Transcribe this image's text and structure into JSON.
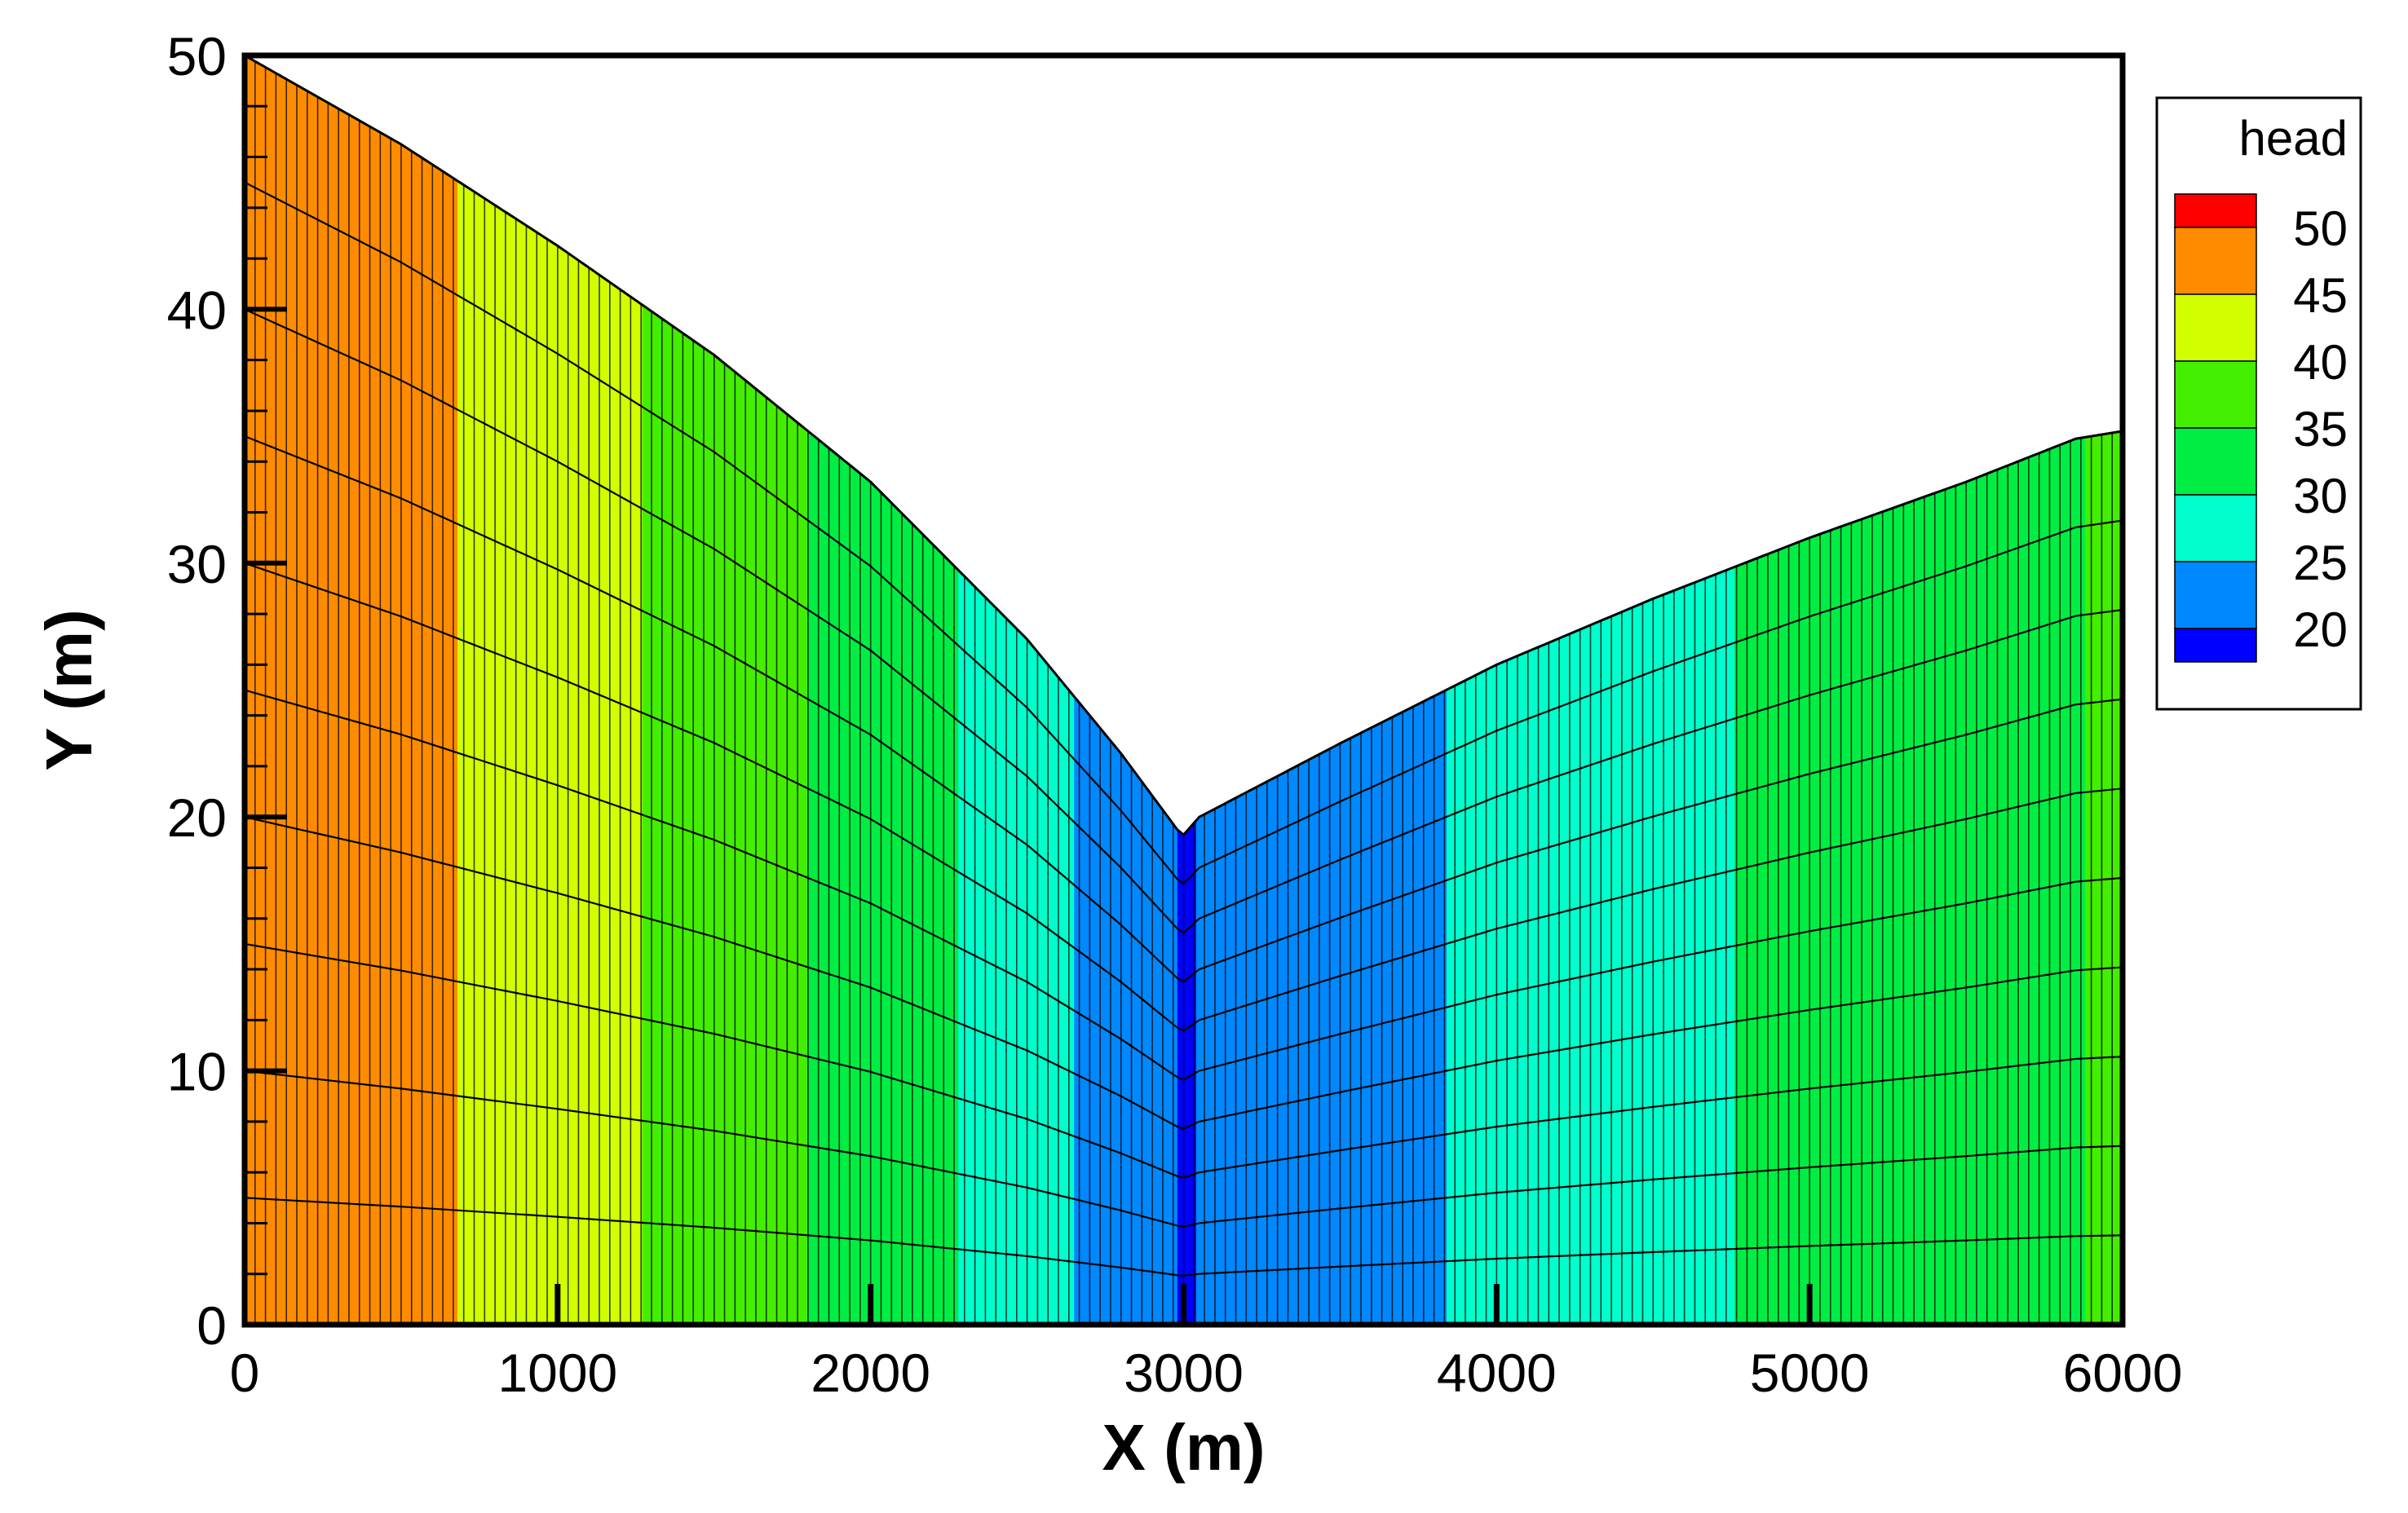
{
  "chart_data": {
    "type": "heatmap",
    "title": "",
    "xlabel": "X (m)",
    "ylabel": "Y (m)",
    "xlim": [
      0,
      6000
    ],
    "ylim": [
      0,
      50
    ],
    "x_ticks": [
      "0",
      "1000",
      "2000",
      "3000",
      "4000",
      "5000",
      "6000"
    ],
    "x_tick_values": [
      0,
      1000,
      2000,
      3000,
      4000,
      5000,
      6000
    ],
    "y_ticks": [
      "0",
      "10",
      "20",
      "30",
      "40",
      "50"
    ],
    "y_tick_values": [
      0,
      10,
      20,
      30,
      40,
      50
    ],
    "grid": false,
    "legend_placement": "right",
    "legend": {
      "title": "head",
      "levels": [
        {
          "label": "",
          "value": 55,
          "color": "#ff0000"
        },
        {
          "label": "50",
          "value": 50,
          "color": "#ff8c00"
        },
        {
          "label": "45",
          "value": 45,
          "color": "#d2ff00"
        },
        {
          "label": "40",
          "value": 40,
          "color": "#44ee00"
        },
        {
          "label": "35",
          "value": 35,
          "color": "#00ee44"
        },
        {
          "label": "30",
          "value": 30,
          "color": "#00ffcc"
        },
        {
          "label": "25",
          "value": 25,
          "color": "#0088ff"
        },
        {
          "label": "20",
          "value": 20,
          "color": "#0000ff"
        }
      ]
    },
    "color_bands": [
      {
        "x_start": 0,
        "x_end": 680,
        "head_range": "45-50",
        "color": "#ff8c00"
      },
      {
        "x_start": 680,
        "x_end": 1270,
        "head_range": "40-45",
        "color": "#d2ff00"
      },
      {
        "x_start": 1270,
        "x_end": 1800,
        "head_range": "35-40",
        "color": "#44ee00"
      },
      {
        "x_start": 1800,
        "x_end": 2280,
        "head_range": "30-35",
        "color": "#00ee44"
      },
      {
        "x_start": 2280,
        "x_end": 2650,
        "head_range": "25-30",
        "color": "#00ffcc"
      },
      {
        "x_start": 2650,
        "x_end": 2980,
        "head_range": "20-25",
        "color": "#0088ff"
      },
      {
        "x_start": 2980,
        "x_end": 3040,
        "head_range": "<20",
        "color": "#0000ff"
      },
      {
        "x_start": 3040,
        "x_end": 3840,
        "head_range": "20-25",
        "color": "#0088ff"
      },
      {
        "x_start": 3840,
        "x_end": 4760,
        "head_range": "25-30",
        "color": "#00ffcc"
      },
      {
        "x_start": 4760,
        "x_end": 5880,
        "head_range": "30-35",
        "color": "#00ee44"
      },
      {
        "x_start": 5880,
        "x_end": 6000,
        "head_range": "35-40",
        "color": "#44ee00"
      }
    ],
    "water_table": {
      "x": [
        0,
        500,
        1000,
        1500,
        2000,
        2500,
        2800,
        2980,
        3000,
        3050,
        3500,
        4000,
        4500,
        5000,
        5500,
        5850,
        6000
      ],
      "y": [
        50,
        46.5,
        42.5,
        38.2,
        33.2,
        27.0,
        22.5,
        19.5,
        19.3,
        20.0,
        22.9,
        26.0,
        28.6,
        31.0,
        33.2,
        34.9,
        35.2
      ]
    },
    "well_marker_x": [
      1000,
      2000,
      3000,
      4000,
      5000
    ],
    "mesh_layer_count": 10,
    "mesh_column_count": 180
  }
}
